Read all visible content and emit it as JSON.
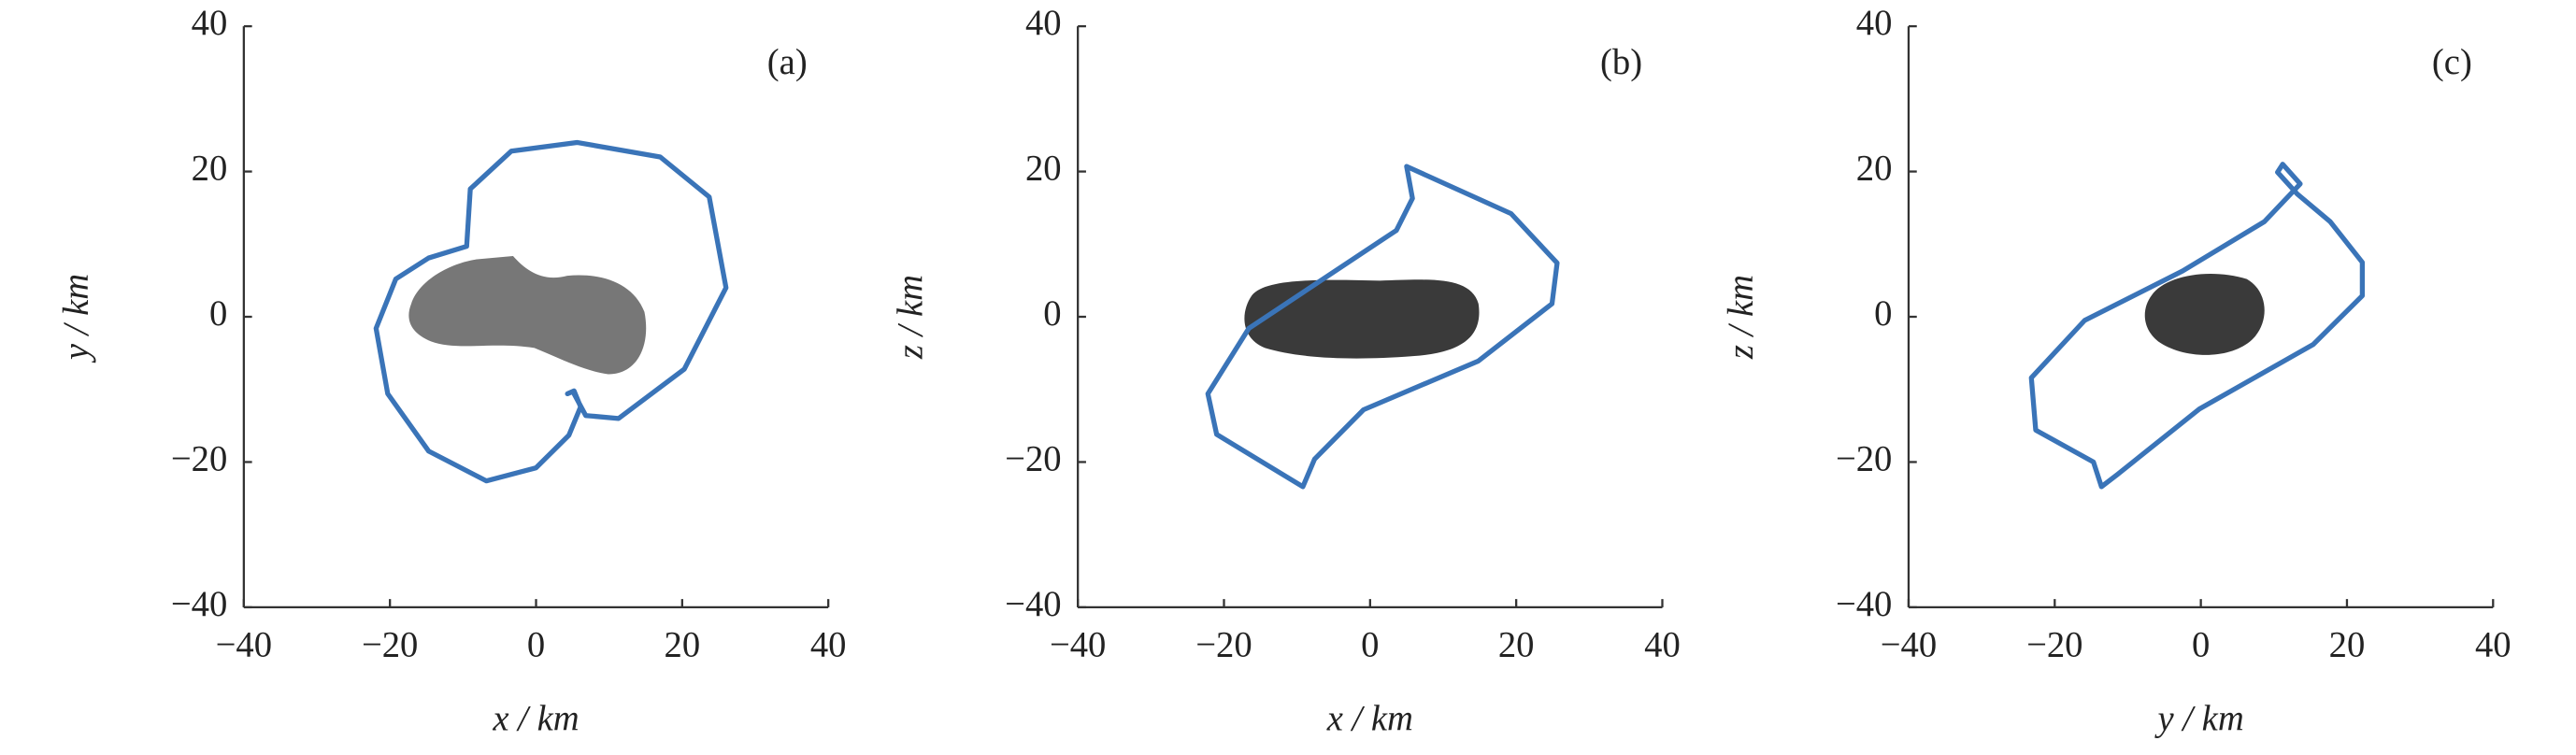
{
  "chart_data": [
    {
      "type": "line",
      "title": "(a)",
      "x_label": "x / km",
      "y_label": "y / km",
      "color": "#3a74b8",
      "x": [
        5.2,
        6.8,
        11.3,
        20.3,
        26,
        23.7,
        17,
        5.6,
        -3.4,
        -9,
        -9.5,
        -14.7,
        -19.2,
        -21.9,
        -20.3,
        -14.7,
        -6.8,
        0,
        4.5,
        6.1,
        5.2,
        4.3
      ],
      "values": [
        -10.6,
        -13.6,
        -14,
        -7.2,
        4,
        16.5,
        22,
        24,
        22.8,
        17.6,
        9.7,
        8.1,
        5.2,
        -1.6,
        -10.6,
        -18.5,
        -22.6,
        -20.8,
        -16.3,
        -12.4,
        -10.2,
        -10.6
      ],
      "xlim": [
        -40,
        40
      ],
      "ylim": [
        -40,
        40
      ],
      "xticks": [
        {
          "value": -40,
          "label": "−40"
        },
        {
          "value": -20,
          "label": "−20"
        },
        0,
        20,
        40
      ],
      "yticks": [
        {
          "value": -40,
          "label": "−40"
        },
        {
          "value": -20,
          "label": "−20"
        },
        0,
        20,
        40
      ]
    },
    {
      "type": "line",
      "title": "(b)",
      "x_label": "x / km",
      "y_label": "z / km",
      "color": "#3a74b8",
      "x": [
        5,
        5.8,
        3.6,
        -16.6,
        -22.2,
        -21,
        -9.2,
        -7.6,
        -0.9,
        14.8,
        24.9,
        25.6,
        19.3,
        5
      ],
      "values": [
        20.7,
        16.3,
        11.9,
        -1.6,
        -10.6,
        -16.2,
        -23.4,
        -19.6,
        -12.8,
        -6.1,
        1.8,
        7.4,
        14.2,
        20.7
      ],
      "xlim": [
        -40,
        40
      ],
      "ylim": [
        -40,
        40
      ],
      "xticks": [
        {
          "value": -40,
          "label": "−40"
        },
        {
          "value": -20,
          "label": "−20"
        },
        0,
        20,
        40
      ],
      "yticks": [
        {
          "value": -40,
          "label": "−40"
        },
        {
          "value": -20,
          "label": "−20"
        },
        0,
        20,
        40
      ]
    },
    {
      "type": "line",
      "title": "(c)",
      "x_label": "y / km",
      "y_label": "z / km",
      "color": "#3a74b8",
      "x": [
        13.6,
        11.2,
        10.5,
        13.2,
        17.7,
        22.1,
        22.1,
        15.4,
        -0.2,
        -11.4,
        -13.6,
        -14.7,
        -22.6,
        -23.2,
        -15.9,
        -2.5,
        8.7,
        13.6
      ],
      "values": [
        18.3,
        21,
        19.9,
        16.9,
        13.1,
        7.5,
        2.9,
        -3.8,
        -12.7,
        -21.7,
        -23.4,
        -20,
        -15.6,
        -8.4,
        -0.5,
        6.3,
        13.1,
        18.3
      ],
      "xlim": [
        -40,
        40
      ],
      "ylim": [
        -40,
        40
      ],
      "xticks": [
        {
          "value": -40,
          "label": "−40"
        },
        {
          "value": -20,
          "label": "−20"
        },
        0,
        20,
        40
      ],
      "yticks": [
        {
          "value": -40,
          "label": "−40"
        },
        {
          "value": -20,
          "label": "−20"
        },
        0,
        20,
        40
      ]
    }
  ]
}
